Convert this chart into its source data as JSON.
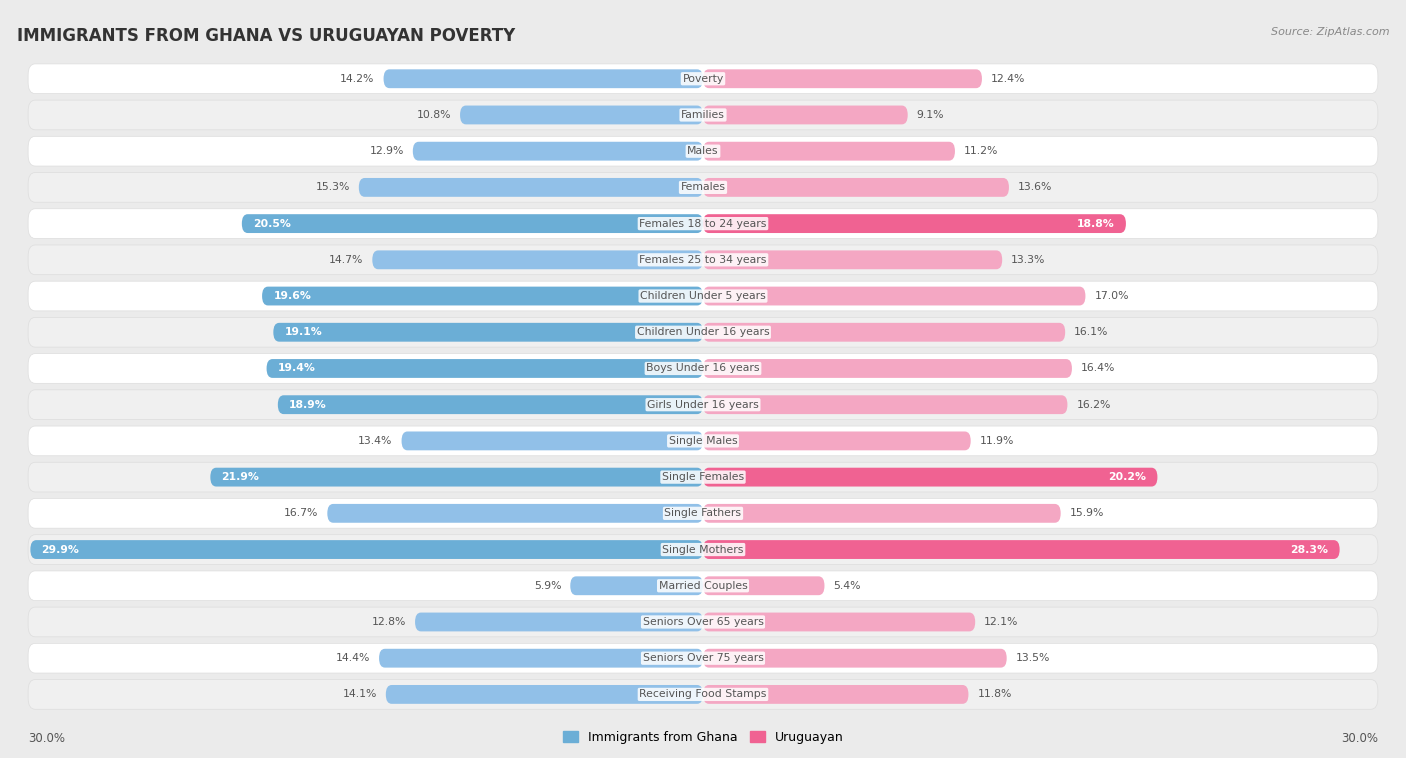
{
  "title": "IMMIGRANTS FROM GHANA VS URUGUAYAN POVERTY",
  "source": "Source: ZipAtlas.com",
  "categories": [
    "Poverty",
    "Families",
    "Males",
    "Females",
    "Females 18 to 24 years",
    "Females 25 to 34 years",
    "Children Under 5 years",
    "Children Under 16 years",
    "Boys Under 16 years",
    "Girls Under 16 years",
    "Single Males",
    "Single Females",
    "Single Fathers",
    "Single Mothers",
    "Married Couples",
    "Seniors Over 65 years",
    "Seniors Over 75 years",
    "Receiving Food Stamps"
  ],
  "ghana_values": [
    14.2,
    10.8,
    12.9,
    15.3,
    20.5,
    14.7,
    19.6,
    19.1,
    19.4,
    18.9,
    13.4,
    21.9,
    16.7,
    29.9,
    5.9,
    12.8,
    14.4,
    14.1
  ],
  "uruguayan_values": [
    12.4,
    9.1,
    11.2,
    13.6,
    18.8,
    13.3,
    17.0,
    16.1,
    16.4,
    16.2,
    11.9,
    20.2,
    15.9,
    28.3,
    5.4,
    12.1,
    13.5,
    11.8
  ],
  "ghana_normal_color": "#91C0E8",
  "ghana_highlight_color": "#6BAED6",
  "uruguayan_normal_color": "#F4A7C3",
  "uruguayan_highlight_color": "#F06292",
  "background_color": "#EBEBEB",
  "row_color_even": "#FFFFFF",
  "row_color_odd": "#F0F0F0",
  "row_border_color": "#DDDDDD",
  "x_max": 30.0,
  "legend_ghana": "Immigrants from Ghana",
  "legend_uruguayan": "Uruguayan",
  "ghana_highlights": [
    4,
    6,
    7,
    8,
    9,
    11,
    13
  ],
  "uruguayan_highlights": [
    4,
    11,
    13
  ]
}
